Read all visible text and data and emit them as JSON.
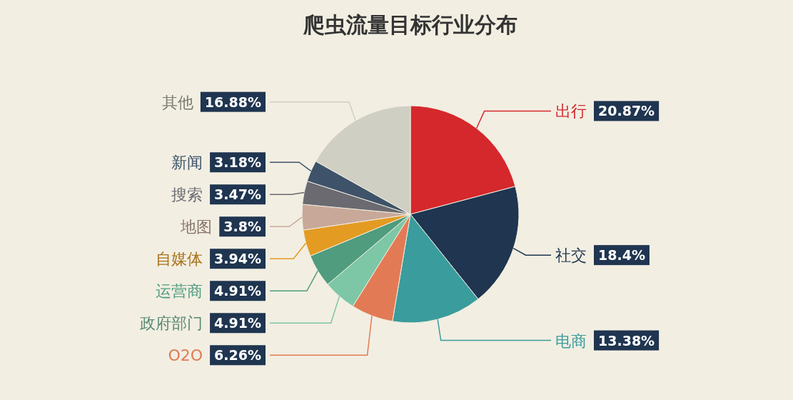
{
  "chart_data": {
    "type": "pie",
    "title": "爬虫流量目标行业分布",
    "categories": [
      "出行",
      "社交",
      "电商",
      "O2O",
      "政府部门",
      "运营商",
      "自媒体",
      "地图",
      "搜索",
      "新闻",
      "其他"
    ],
    "values": [
      20.87,
      18.4,
      13.38,
      6.26,
      4.91,
      4.91,
      3.94,
      3.8,
      3.47,
      3.18,
      16.88
    ],
    "colors": [
      "#d5282c",
      "#1f3550",
      "#3a9c9c",
      "#e27b55",
      "#7dc6a6",
      "#4f9c7e",
      "#e39b22",
      "#c8a999",
      "#6a6a70",
      "#3e5369",
      "#d0cfc4"
    ],
    "value_labels": [
      "20.87%",
      "18.4%",
      "13.38%",
      "6.26%",
      "4.91%",
      "4.91%",
      "3.94%",
      "3.8%",
      "3.47%",
      "3.18%",
      "16.88%"
    ]
  }
}
